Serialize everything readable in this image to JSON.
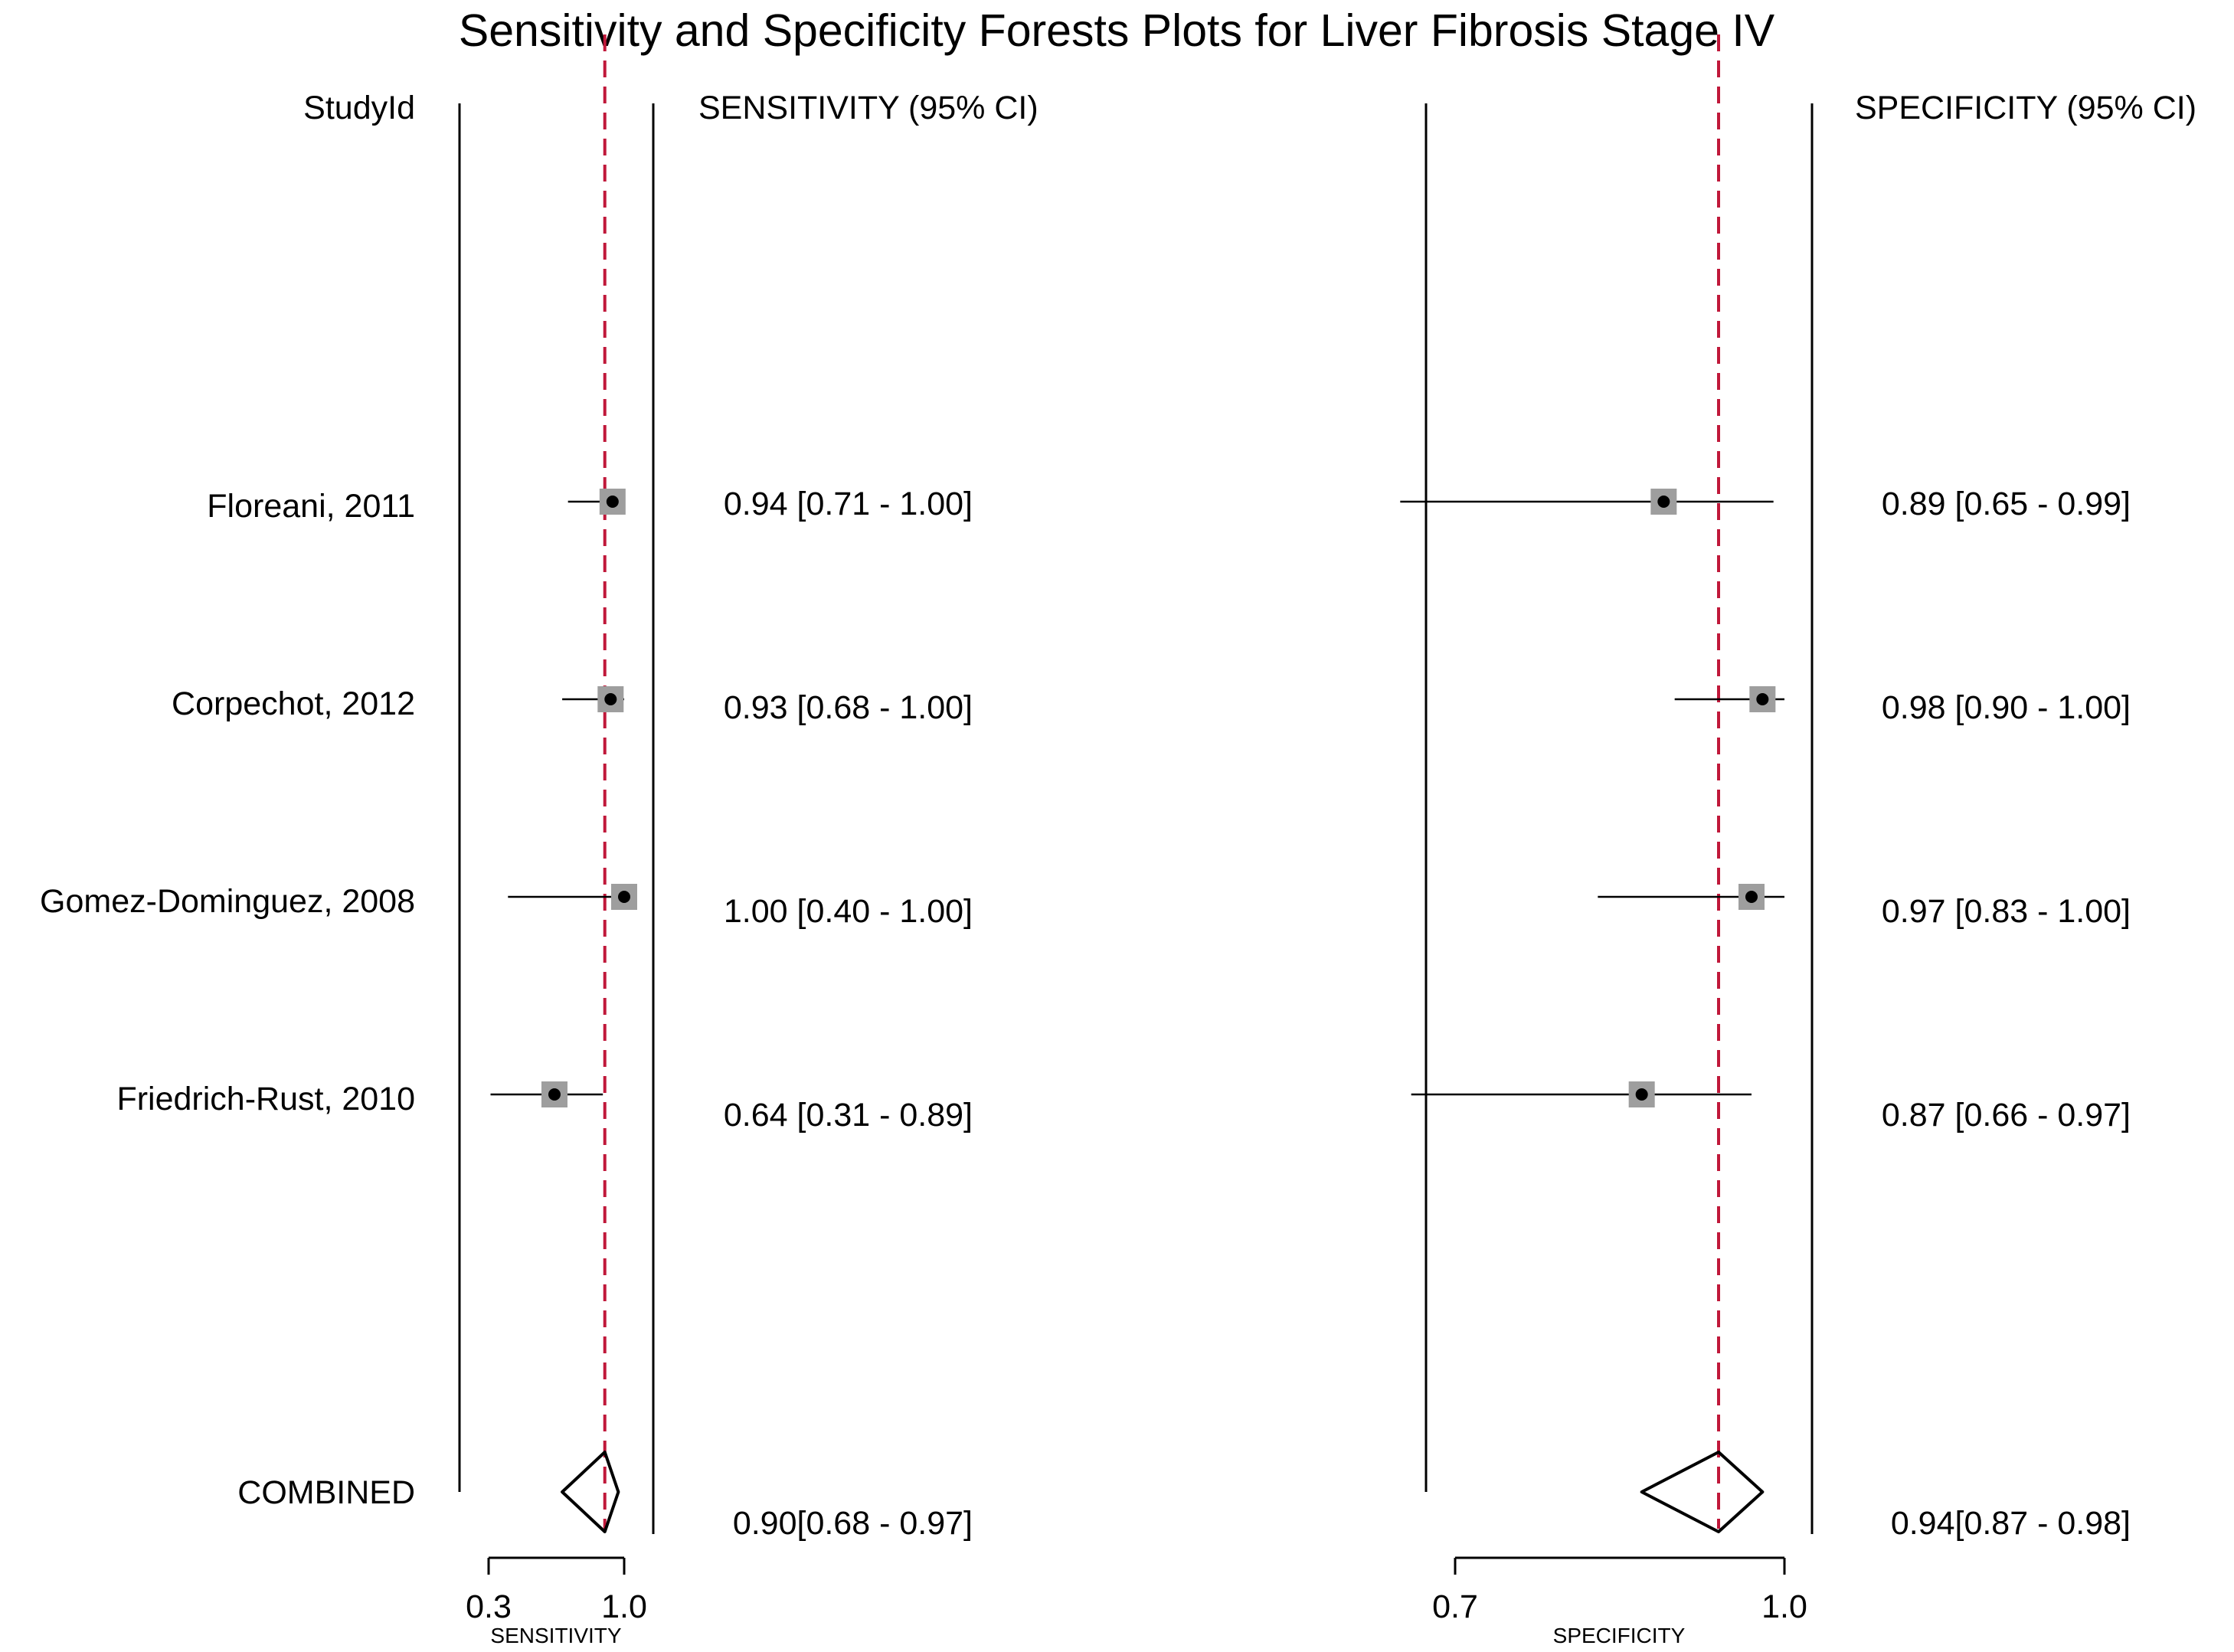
{
  "title": "Sensitivity and Specificity Forests Plots for Liver Fibrosis Stage IV",
  "headers": {
    "study": "StudyId",
    "sensitivity": "SENSITIVITY (95% CI)",
    "specificity": "SPECIFICITY (95% CI)"
  },
  "colors": {
    "reference_line": "#c0183a",
    "box_fill": "#9e9e9e",
    "ink": "#000000"
  },
  "chart_data": [
    {
      "type": "forest",
      "measure": "sensitivity",
      "xlabel": "SENSITIVITY",
      "ticks": [
        {
          "value": 0.3,
          "label": "0.3"
        },
        {
          "value": 1.0,
          "label": "1.0"
        }
      ],
      "xlim": [
        0.3,
        1.0
      ],
      "reference_line": 0.9,
      "studies": [
        {
          "name": "Floreani, 2011",
          "est": 0.94,
          "lo": 0.71,
          "hi": 1.0,
          "label": "0.94 [0.71 - 1.00]"
        },
        {
          "name": "Corpechot, 2012",
          "est": 0.93,
          "lo": 0.68,
          "hi": 1.0,
          "label": "0.93 [0.68 - 1.00]"
        },
        {
          "name": "Gomez-Dominguez, 2008",
          "est": 1.0,
          "lo": 0.4,
          "hi": 1.0,
          "label": "1.00 [0.40 - 1.00]"
        },
        {
          "name": "Friedrich-Rust, 2010",
          "est": 0.64,
          "lo": 0.31,
          "hi": 0.89,
          "label": "0.64 [0.31 - 0.89]"
        }
      ],
      "combined": {
        "name": "COMBINED",
        "est": 0.9,
        "lo": 0.68,
        "hi": 0.97,
        "label": "0.90[0.68 - 0.97]"
      }
    },
    {
      "type": "forest",
      "measure": "specificity",
      "xlabel": "SPECIFICITY",
      "ticks": [
        {
          "value": 0.7,
          "label": "0.7"
        },
        {
          "value": 1.0,
          "label": "1.0"
        }
      ],
      "xlim": [
        0.7,
        1.0
      ],
      "reference_line": 0.94,
      "studies": [
        {
          "name": "Floreani, 2011",
          "est": 0.89,
          "lo": 0.65,
          "hi": 0.99,
          "label": "0.89 [0.65 - 0.99]"
        },
        {
          "name": "Corpechot, 2012",
          "est": 0.98,
          "lo": 0.9,
          "hi": 1.0,
          "label": "0.98 [0.90 - 1.00]"
        },
        {
          "name": "Gomez-Dominguez, 2008",
          "est": 0.97,
          "lo": 0.83,
          "hi": 1.0,
          "label": "0.97 [0.83 - 1.00]"
        },
        {
          "name": "Friedrich-Rust, 2010",
          "est": 0.87,
          "lo": 0.66,
          "hi": 0.97,
          "label": "0.87 [0.66 - 0.97]"
        }
      ],
      "combined": {
        "name": "COMBINED",
        "est": 0.94,
        "lo": 0.87,
        "hi": 0.98,
        "label": "0.94[0.87 - 0.98]"
      }
    }
  ]
}
